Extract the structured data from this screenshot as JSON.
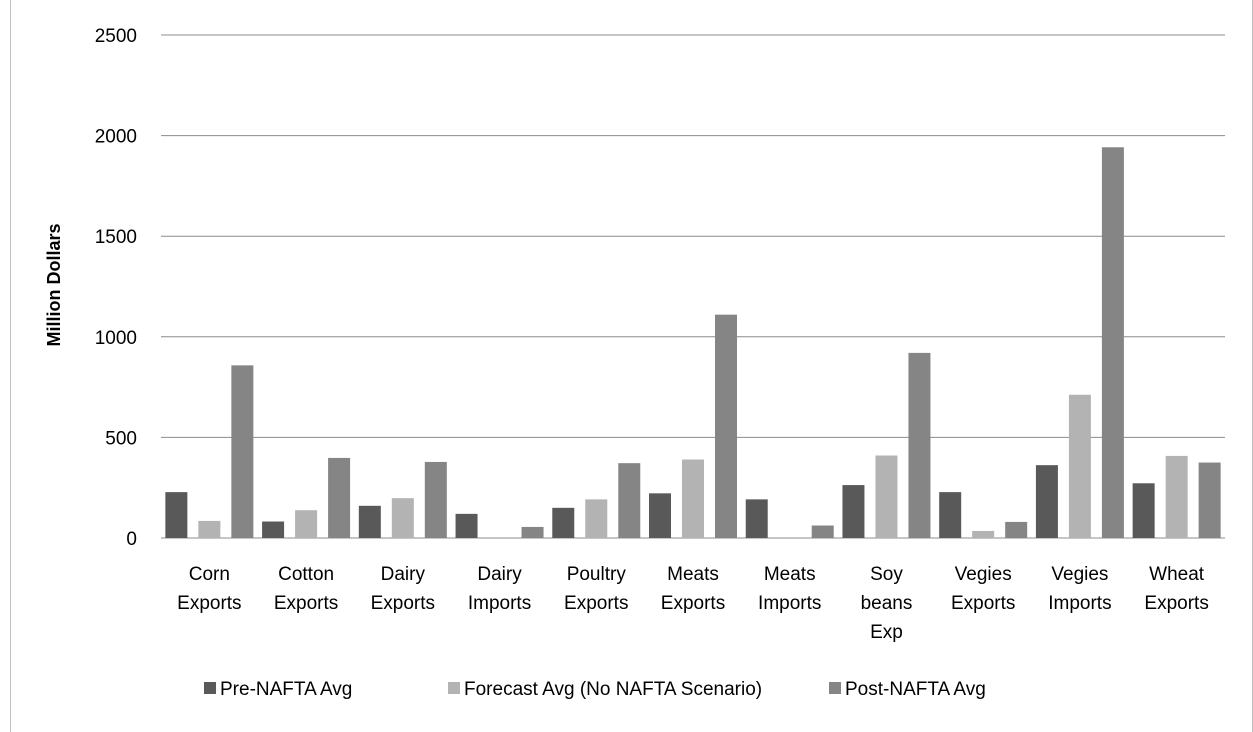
{
  "chart_data": {
    "type": "bar",
    "title": "",
    "xlabel": "",
    "ylabel": "Million Dollars",
    "ylim": [
      0,
      2500
    ],
    "yticks": [
      0,
      500,
      1000,
      1500,
      2000,
      2500
    ],
    "grid": true,
    "legend_position": "bottom",
    "categories": [
      [
        "Corn",
        "Exports"
      ],
      [
        "Cotton",
        "Exports"
      ],
      [
        "Dairy",
        "Exports"
      ],
      [
        "Dairy",
        "Imports"
      ],
      [
        "Poultry",
        "Exports"
      ],
      [
        "Meats",
        "Exports"
      ],
      [
        "Meats",
        "Imports"
      ],
      [
        "Soy",
        "beans",
        "Exp"
      ],
      [
        "Vegies",
        "Exports"
      ],
      [
        "Vegies",
        "Imports"
      ],
      [
        "Wheat",
        "Exports"
      ]
    ],
    "series": [
      {
        "name": "Pre-NAFTA Avg",
        "color": "#595959",
        "values": [
          228,
          82,
          160,
          120,
          150,
          222,
          192,
          263,
          228,
          362,
          272
        ]
      },
      {
        "name": "Forecast Avg (No NAFTA Scenario)",
        "color": "#b3b3b3",
        "values": [
          85,
          138,
          198,
          0,
          192,
          390,
          0,
          410,
          35,
          712,
          408
        ]
      },
      {
        "name": "Post-NAFTA Avg",
        "color": "#858585",
        "values": [
          858,
          398,
          378,
          55,
          372,
          1110,
          62,
          920,
          80,
          1942,
          375
        ]
      }
    ]
  }
}
